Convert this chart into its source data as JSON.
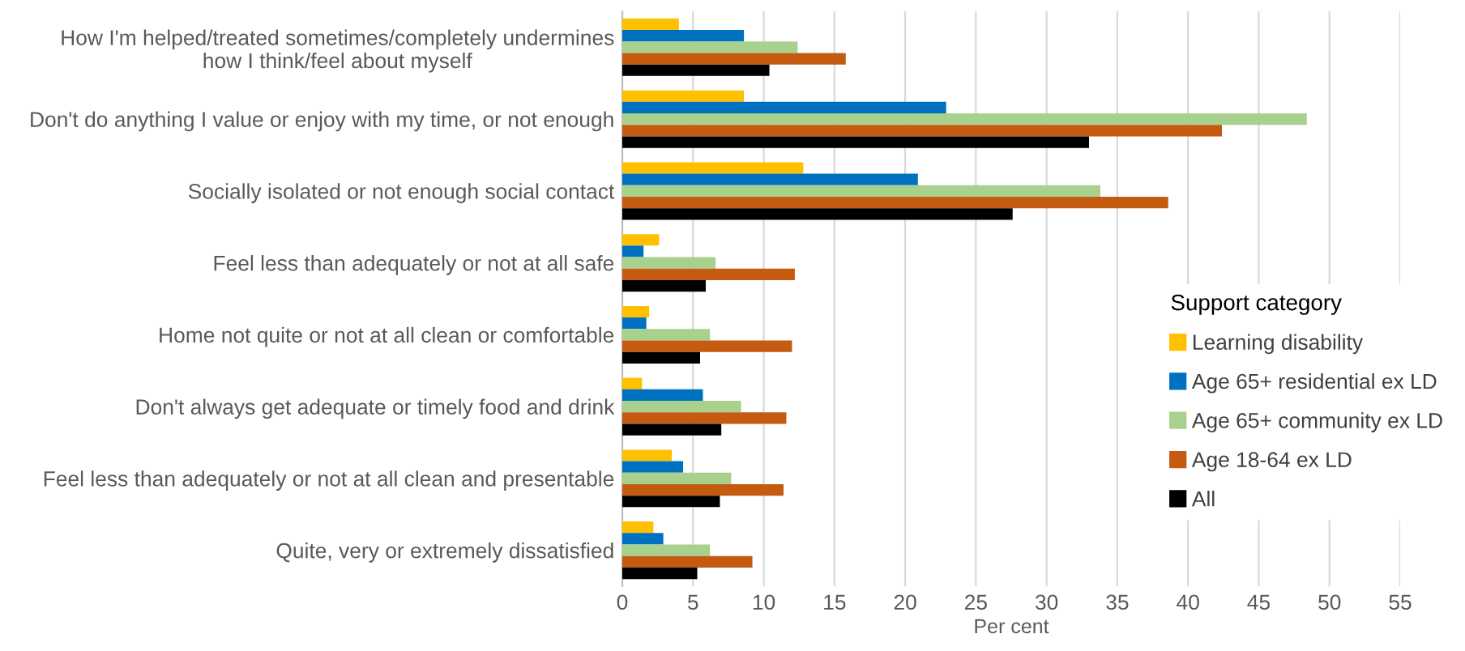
{
  "chart_data": {
    "type": "bar",
    "orientation": "horizontal",
    "xlabel": "Per cent",
    "legend_title": "Support category",
    "legend": "right",
    "grid": "x",
    "categories": [
      "How I'm helped/treated sometimes/completely undermines\nhow I think/feel about myself",
      "Don't do anything I value or enjoy with my time, or not enough",
      "Socially isolated or not enough social contact",
      "Feel less than adequately or not at all safe",
      "Home not quite or not at all clean or comfortable",
      "Don't always get adequate or timely food and drink",
      "Feel less than adequately or not at all clean and presentable",
      "Quite, very or extremely dissatisfied"
    ],
    "xlim": [
      0,
      55
    ],
    "xticks": [
      0,
      5,
      10,
      15,
      20,
      25,
      30,
      35,
      40,
      45,
      50,
      55
    ],
    "series": [
      {
        "name": "Learning disability",
        "color": "#ffc000",
        "values": [
          4.0,
          8.6,
          12.8,
          2.6,
          1.9,
          1.4,
          3.5,
          2.2
        ]
      },
      {
        "name": "Age 65+ residential ex LD",
        "color": "#0070c0",
        "values": [
          8.6,
          22.9,
          20.9,
          1.5,
          1.7,
          5.7,
          4.3,
          2.9
        ]
      },
      {
        "name": "Age 65+ community ex LD",
        "color": "#a9d18e",
        "values": [
          12.4,
          48.4,
          33.8,
          6.6,
          6.2,
          8.4,
          7.7,
          6.2
        ]
      },
      {
        "name": "Age 18-64 ex LD",
        "color": "#c55a11",
        "values": [
          15.8,
          42.4,
          38.6,
          12.2,
          12.0,
          11.6,
          11.4,
          9.2
        ]
      },
      {
        "name": "All",
        "color": "#000000",
        "values": [
          10.4,
          33.0,
          27.6,
          5.9,
          5.5,
          7.0,
          6.9,
          5.3
        ]
      }
    ]
  }
}
